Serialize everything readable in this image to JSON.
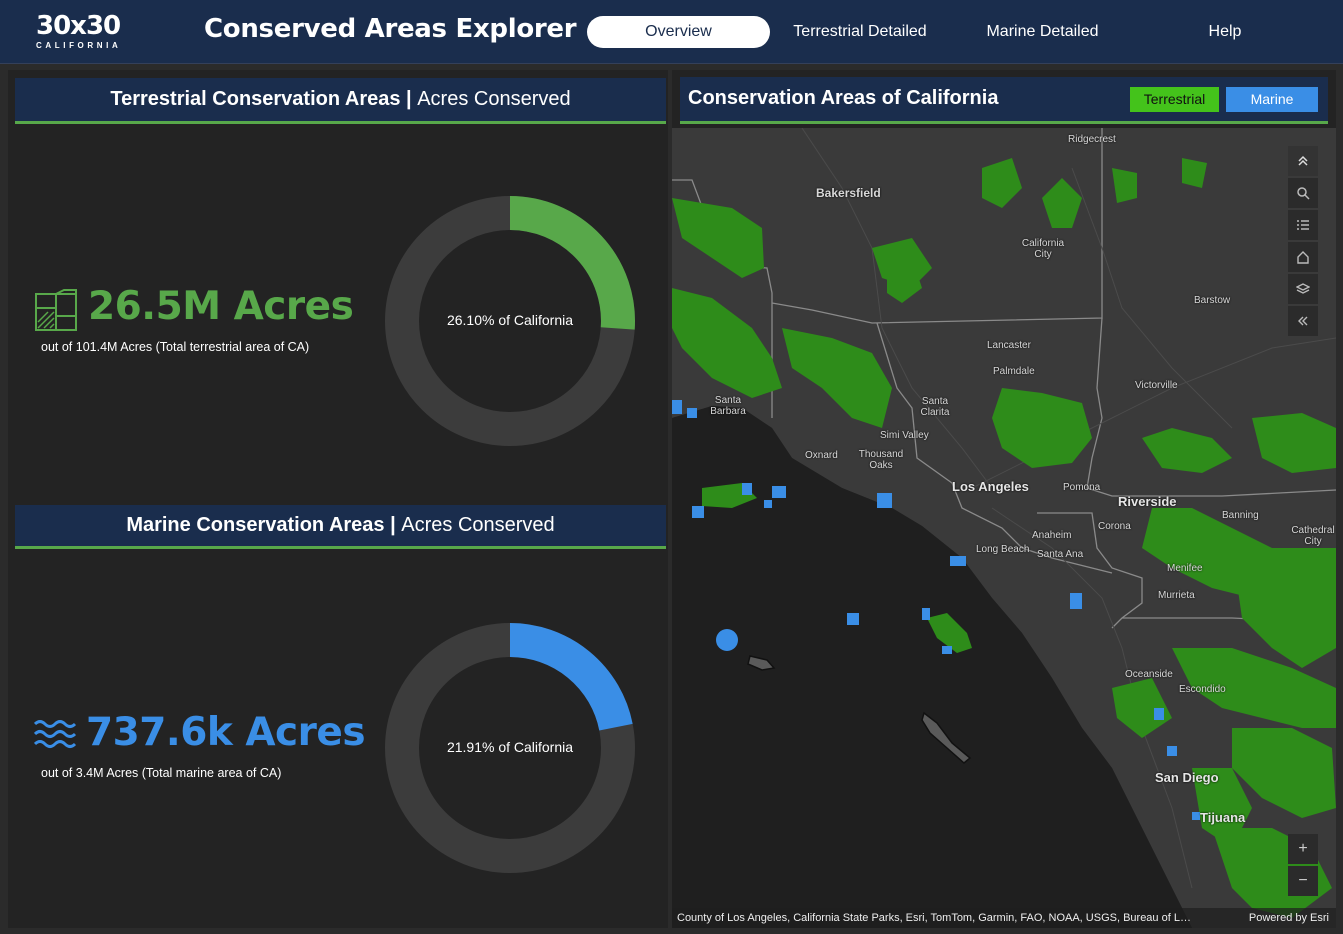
{
  "header": {
    "logo_main": "30x30",
    "logo_sub": "CALIFORNIA",
    "title": "Conserved Areas Explorer",
    "tabs": [
      {
        "label": "Overview",
        "active": true
      },
      {
        "label": "Terrestrial Detailed",
        "active": false
      },
      {
        "label": "Marine Detailed",
        "active": false
      },
      {
        "label": "Help",
        "active": false
      }
    ]
  },
  "terrestrial": {
    "header_bold": "Terrestrial Conservation Areas",
    "header_sep": " | ",
    "header_light": "Acres Conserved",
    "big_value": "26.5M Acres",
    "sub_text": "out of 101.4M Acres (Total terrestrial area of CA)",
    "icon": "land-parcel-icon",
    "donut_label": "26.10% of California",
    "percent": 0.261,
    "color": "#58a84a"
  },
  "marine": {
    "header_bold": "Marine Conservation Areas",
    "header_sep": " | ",
    "header_light": "Acres Conserved",
    "big_value": "737.6k Acres",
    "sub_text": "out of 3.4M Acres (Total marine area of CA)",
    "icon": "waves-icon",
    "donut_label": "21.91% of California",
    "percent": 0.2191,
    "color": "#3a8ee6"
  },
  "map": {
    "title": "Conservation Areas of California",
    "legend": [
      {
        "label": "Terrestrial",
        "color": "#44c31b"
      },
      {
        "label": "Marine",
        "color": "#3a8ee6"
      }
    ],
    "tools": [
      "collapse-icon",
      "search-icon",
      "legend-list-icon",
      "home-icon",
      "layers-icon",
      "expand-left-icon"
    ],
    "zoom_in": "+",
    "zoom_out": "−",
    "cities": [
      {
        "name": "Ridgecrest",
        "big": false
      },
      {
        "name": "Bakersfield",
        "big": false
      },
      {
        "name": "California City",
        "big": false
      },
      {
        "name": "Barstow",
        "big": false
      },
      {
        "name": "Lancaster",
        "big": false
      },
      {
        "name": "Palmdale",
        "big": false
      },
      {
        "name": "Victorville",
        "big": false
      },
      {
        "name": "Santa Barbara",
        "big": false
      },
      {
        "name": "Santa Clarita",
        "big": false
      },
      {
        "name": "Simi Valley",
        "big": false
      },
      {
        "name": "Oxnard",
        "big": false
      },
      {
        "name": "Thousand Oaks",
        "big": false
      },
      {
        "name": "Los Angeles",
        "big": true
      },
      {
        "name": "Pomona",
        "big": false
      },
      {
        "name": "Riverside",
        "big": true
      },
      {
        "name": "Banning",
        "big": false
      },
      {
        "name": "Cathedral City",
        "big": false
      },
      {
        "name": "Corona",
        "big": false
      },
      {
        "name": "Anaheim",
        "big": false
      },
      {
        "name": "Long Beach",
        "big": false
      },
      {
        "name": "Santa Ana",
        "big": false
      },
      {
        "name": "Menifee",
        "big": false
      },
      {
        "name": "Murrieta",
        "big": false
      },
      {
        "name": "Oceanside",
        "big": false
      },
      {
        "name": "Escondido",
        "big": false
      },
      {
        "name": "San Diego",
        "big": true
      },
      {
        "name": "Tijuana",
        "big": true
      }
    ],
    "attribution": "County of Los Angeles, California State Parks, Esri, TomTom, Garmin, FAO, NOAA, USGS, Bureau of L…",
    "powered_by": "Powered by Esri"
  }
}
